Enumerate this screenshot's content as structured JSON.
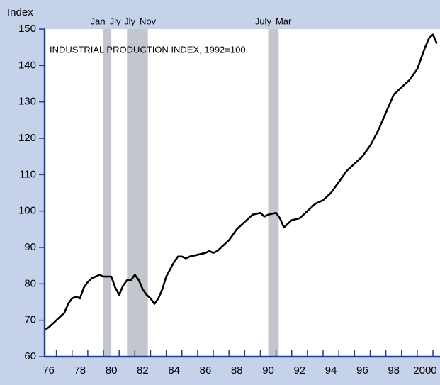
{
  "chart_data": {
    "type": "line",
    "ylabel": "Index",
    "annotation": "INDUSTRIAL PRODUCTION INDEX, 1992=100",
    "ylim": [
      60,
      150
    ],
    "yticks": [
      60,
      70,
      80,
      90,
      100,
      110,
      120,
      130,
      140,
      150
    ],
    "xlim": [
      1976.25,
      2001.45
    ],
    "xticks": [
      {
        "value": 1976.5,
        "label": "76"
      },
      {
        "value": 1978.5,
        "label": "78"
      },
      {
        "value": 1980.5,
        "label": "80"
      },
      {
        "value": 1982.5,
        "label": "82"
      },
      {
        "value": 1984.5,
        "label": "84"
      },
      {
        "value": 1986.5,
        "label": "86"
      },
      {
        "value": 1988.5,
        "label": "88"
      },
      {
        "value": 1990.5,
        "label": "90"
      },
      {
        "value": 1992.5,
        "label": "92"
      },
      {
        "value": 1994.5,
        "label": "94"
      },
      {
        "value": 1996.5,
        "label": "96"
      },
      {
        "value": 1998.5,
        "label": "98"
      },
      {
        "value": 2000.5,
        "label": "2000"
      }
    ],
    "xminorticks": [
      1977,
      1978,
      1979,
      1980,
      1981,
      1982,
      1983,
      1984,
      1985,
      1986,
      1987,
      1988,
      1989,
      1990,
      1991,
      1992,
      1993,
      1994,
      1995,
      1996,
      1997,
      1998,
      1999,
      2000,
      2001
    ],
    "recessions": [
      {
        "start": 1980.0,
        "end": 1980.5,
        "start_label": "Jan",
        "end_label": "Jly"
      },
      {
        "start": 1981.5,
        "end": 1982.83,
        "start_label": "Jly",
        "end_label": "Nov"
      },
      {
        "start": 1990.5,
        "end": 1991.17,
        "start_label": "July",
        "end_label": "Mar"
      }
    ],
    "series": [
      {
        "color": "#000000",
        "x": [
          1976.3,
          1976.5,
          1976.75,
          1977.0,
          1977.25,
          1977.5,
          1977.75,
          1978.0,
          1978.25,
          1978.5,
          1978.75,
          1979.0,
          1979.25,
          1979.5,
          1979.75,
          1980.0,
          1980.25,
          1980.5,
          1980.75,
          1981.0,
          1981.25,
          1981.5,
          1981.75,
          1982.0,
          1982.25,
          1982.5,
          1982.75,
          1983.0,
          1983.25,
          1983.5,
          1983.75,
          1984.0,
          1984.25,
          1984.5,
          1984.75,
          1985.0,
          1985.25,
          1985.5,
          1986.0,
          1986.5,
          1986.75,
          1987.0,
          1987.25,
          1987.5,
          1988.0,
          1988.5,
          1989.0,
          1989.5,
          1990.0,
          1990.25,
          1990.5,
          1991.0,
          1991.25,
          1991.5,
          1991.75,
          1992.0,
          1992.5,
          1993.0,
          1993.5,
          1994.0,
          1994.5,
          1995.0,
          1995.5,
          1996.0,
          1996.5,
          1997.0,
          1997.5,
          1998.0,
          1998.5,
          1999.0,
          1999.5,
          2000.0,
          2000.25,
          2000.5,
          2000.75,
          2001.0,
          2001.25
        ],
        "values": [
          67.5,
          68,
          69,
          70,
          71,
          72,
          74.5,
          76,
          76.5,
          76,
          79,
          80.5,
          81.5,
          82,
          82.5,
          82,
          82,
          82,
          79,
          77,
          79.5,
          81,
          81,
          82.5,
          81,
          78.5,
          77,
          76,
          74.5,
          76,
          78.5,
          82,
          84,
          86,
          87.5,
          87.5,
          87,
          87.5,
          88,
          88.5,
          89,
          88.5,
          89,
          90,
          92,
          95,
          97,
          99,
          99.5,
          98.5,
          99,
          99.5,
          98,
          95.5,
          96.5,
          97.5,
          98,
          100,
          102,
          103,
          105,
          108,
          111,
          113,
          115,
          118,
          122,
          127,
          132,
          134,
          136,
          139,
          142,
          145,
          147.5,
          148.5,
          146
        ]
      }
    ]
  }
}
